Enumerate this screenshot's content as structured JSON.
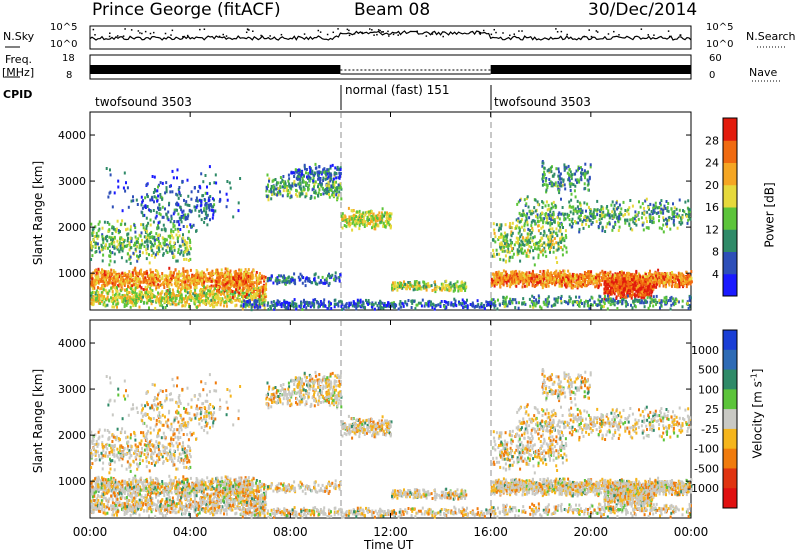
{
  "header": {
    "station": "Prince George (fitACF)",
    "beam": "Beam 08",
    "date": "30/Dec/2014"
  },
  "top_panels": {
    "nsky_label": "N.Sky",
    "nsky_ticks": [
      "10^5",
      "10^0"
    ],
    "nsearch_label": "N.Search",
    "nsearch_ticks": [
      "10^5",
      "10^0"
    ],
    "freq_label": "Freq.",
    "freq_unit": "[MHz]",
    "freq_ticks": [
      "18",
      "8"
    ],
    "nave_label": "Nave",
    "nave_ticks": [
      "60",
      "0"
    ],
    "cpid_label": "CPID",
    "cpid_segments": [
      {
        "name": "twofsound 3503",
        "start_hour": 0,
        "end_hour": 10
      },
      {
        "name": "normal (fast) 151",
        "start_hour": 10,
        "end_hour": 16
      },
      {
        "name": "twofsound 3503",
        "start_hour": 16,
        "end_hour": 24
      }
    ]
  },
  "colors": {
    "power_scale": [
      "#1a1aff",
      "#2e4fb8",
      "#2f8a68",
      "#5cc43a",
      "#e6d93c",
      "#f5a623",
      "#f06a10",
      "#e21b0c"
    ],
    "velocity_scale": [
      "#1a3fd6",
      "#2e6bb5",
      "#2f8a68",
      "#5cc43a",
      "#c9c9c4",
      "#f5b51c",
      "#f07b0c",
      "#e03310",
      "#e01010"
    ]
  },
  "chart_data": [
    {
      "type": "heatmap",
      "name": "power",
      "ylabel": "Slant Range [km]",
      "x_range_hours": [
        0,
        24
      ],
      "xticks": [
        "00:00",
        "04:00",
        "08:00",
        "12:00",
        "16:00",
        "20:00",
        "00:00"
      ],
      "ylim": [
        200,
        4500
      ],
      "yticks": [
        1000,
        2000,
        3000,
        4000
      ],
      "colorbar_label": "Power [dB]",
      "colorbar_ticks": [
        4,
        8,
        12,
        16,
        20,
        24,
        28
      ],
      "colorbar_range": [
        0,
        32
      ]
    },
    {
      "type": "heatmap",
      "name": "velocity",
      "ylabel": "Slant Range [km]",
      "xlabel": "Time UT",
      "x_range_hours": [
        0,
        24
      ],
      "xticks": [
        "00:00",
        "04:00",
        "08:00",
        "12:00",
        "16:00",
        "20:00",
        "00:00"
      ],
      "ylim": [
        200,
        4500
      ],
      "yticks": [
        1000,
        2000,
        3000,
        4000
      ],
      "colorbar_label": "Velocity [m s",
      "colorbar_label_sup": "-1",
      "colorbar_label_end": "]",
      "colorbar_ticks": [
        "1000",
        "500",
        "100",
        "25",
        "-25",
        "-100",
        "-500",
        "-1000"
      ]
    }
  ]
}
